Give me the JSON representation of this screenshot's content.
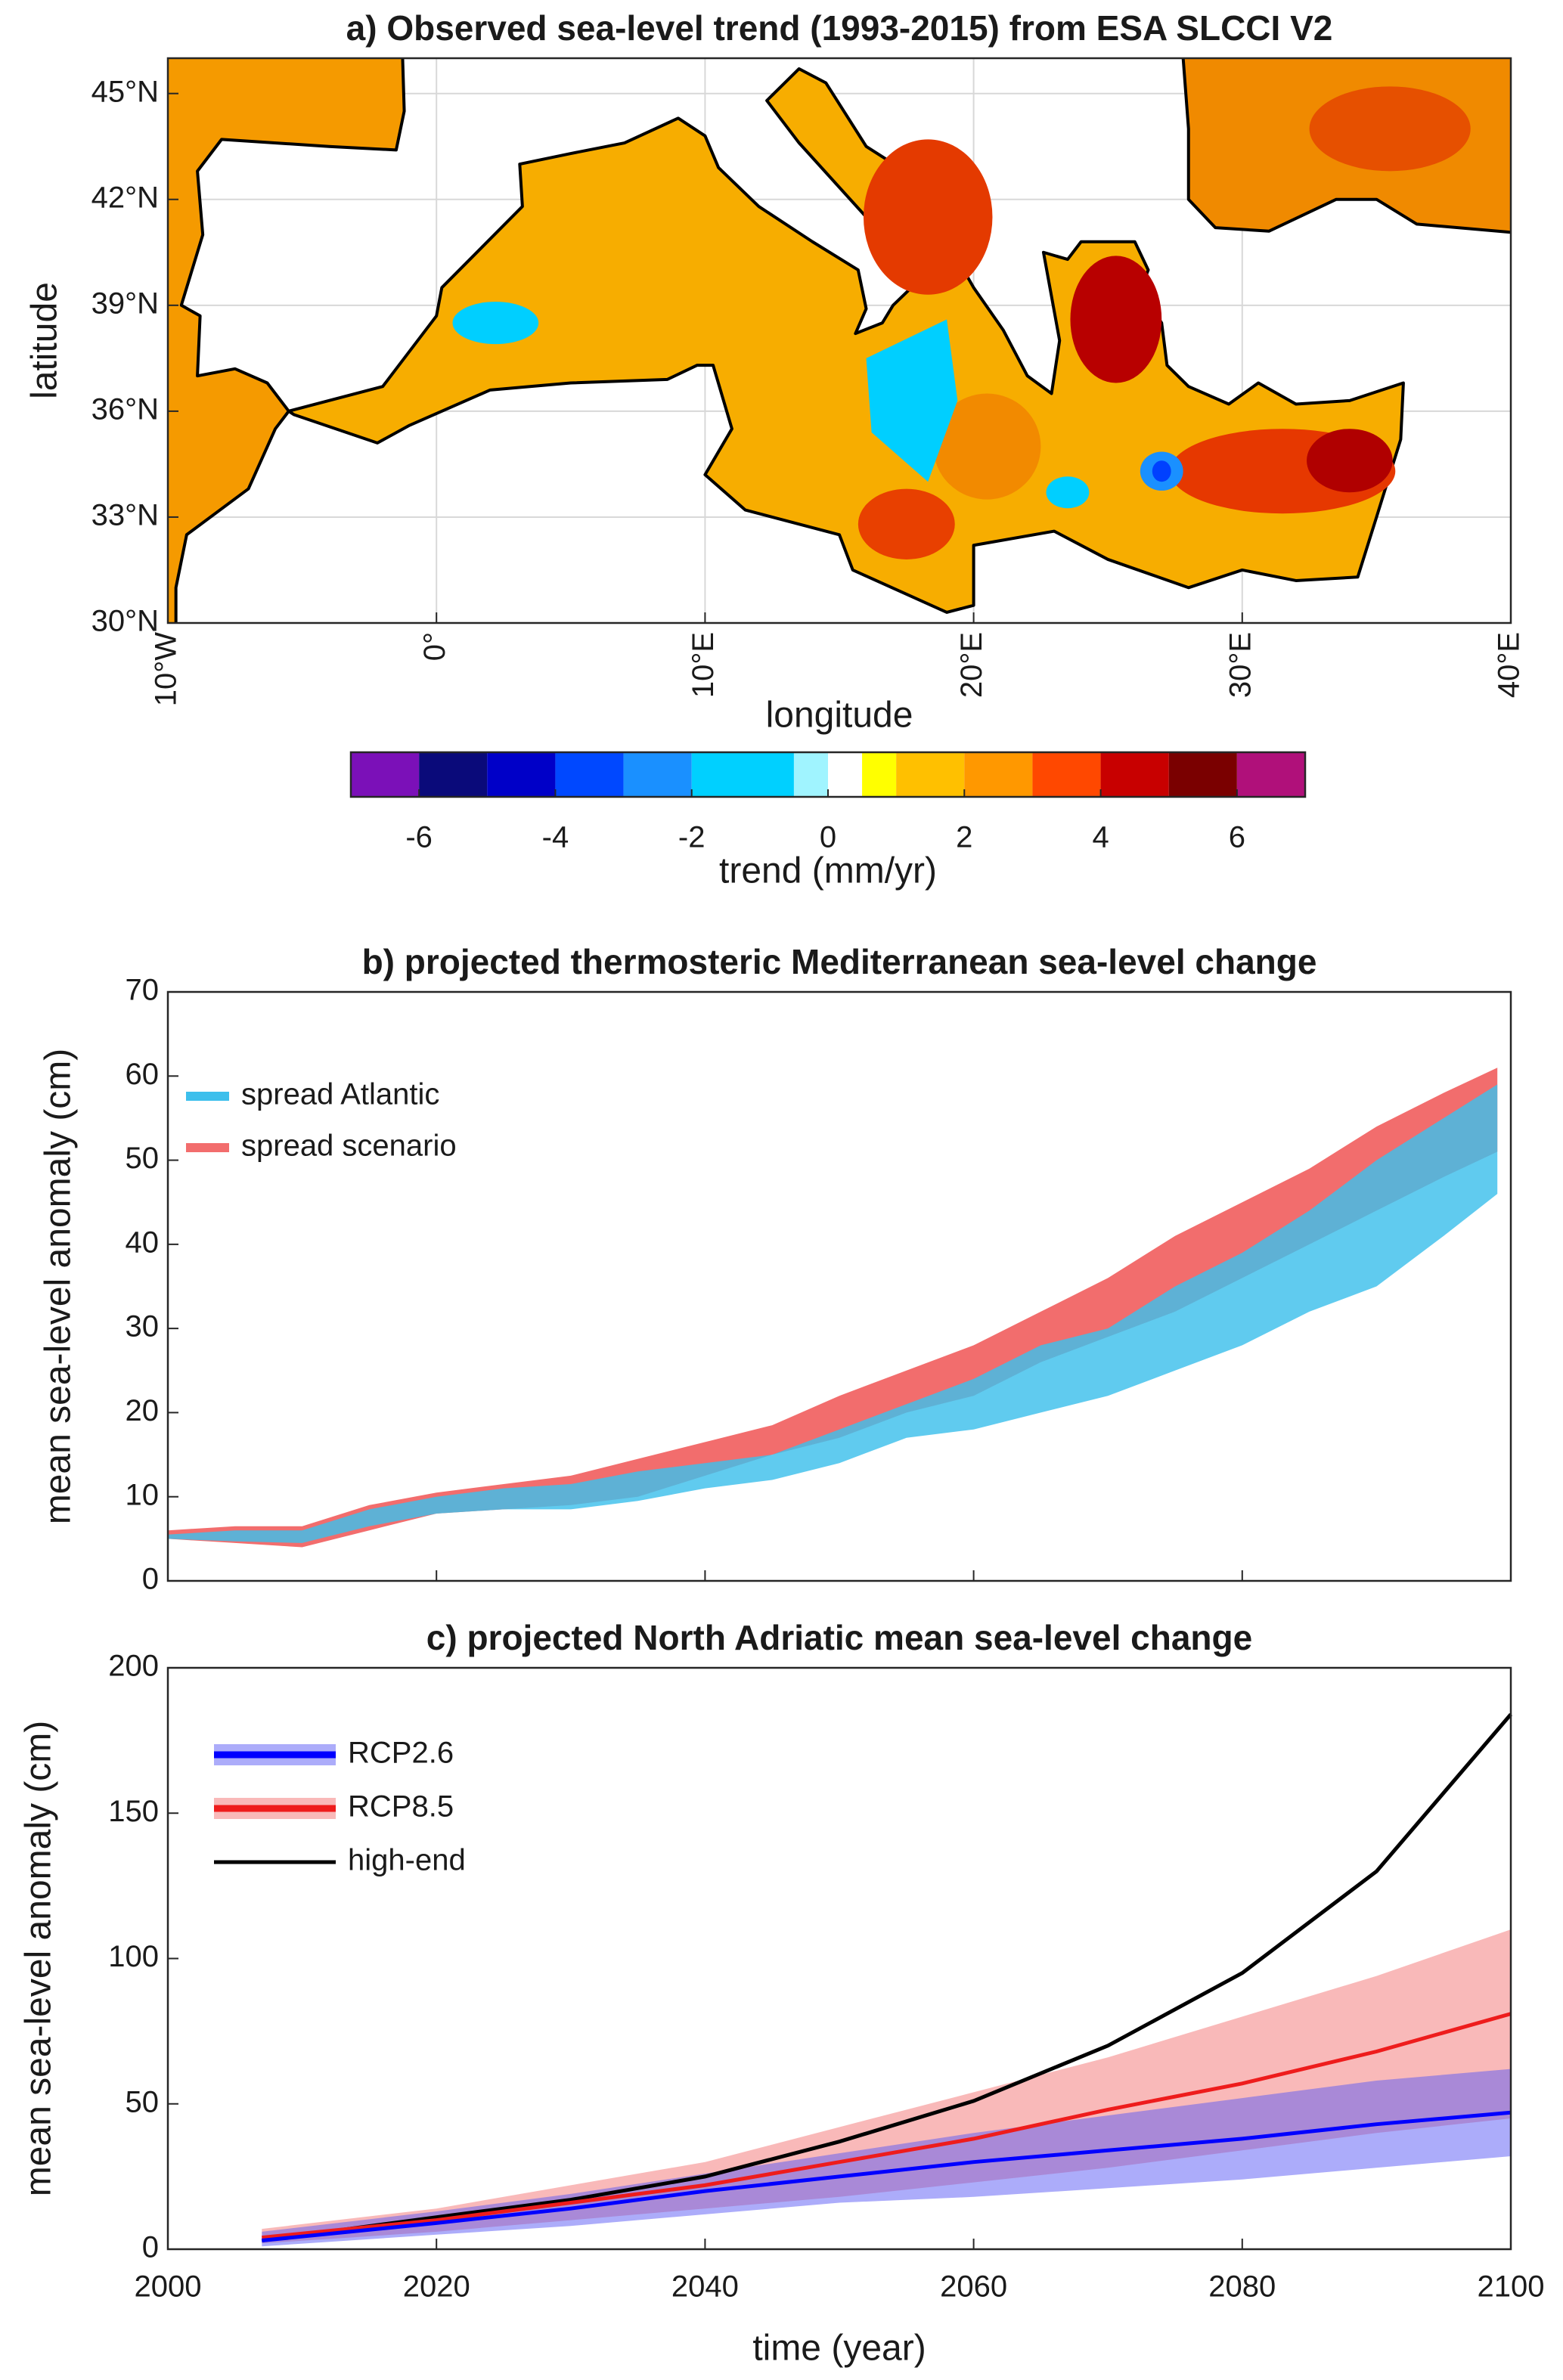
{
  "chart_data": [
    {
      "type": "map",
      "title": "a) Observed sea-level trend (1993-2015) from ESA SLCCI V2",
      "xlabel": "longitude",
      "ylabel": "latitude",
      "xlim": [
        -10,
        40
      ],
      "ylim": [
        30,
        46
      ],
      "grid": true,
      "xticks": [
        {
          "value": -10,
          "label": "10°W"
        },
        {
          "value": 0,
          "label": "0°"
        },
        {
          "value": 10,
          "label": "10°E"
        },
        {
          "value": 20,
          "label": "20°E"
        },
        {
          "value": 30,
          "label": "30°E"
        },
        {
          "value": 40,
          "label": "40°E"
        }
      ],
      "yticks": [
        {
          "value": 30,
          "label": "30°N"
        },
        {
          "value": 33,
          "label": "33°N"
        },
        {
          "value": 36,
          "label": "36°N"
        },
        {
          "value": 39,
          "label": "39°N"
        },
        {
          "value": 42,
          "label": "42°N"
        },
        {
          "value": 45,
          "label": "45°N"
        }
      ],
      "colorbar": {
        "label": "trend (mm/yr)",
        "lim": [
          -7,
          7
        ],
        "ticks": [
          -6,
          -4,
          -2,
          0,
          2,
          4,
          6
        ],
        "bounds": [
          -7,
          -6,
          -5,
          -4,
          -3,
          -2,
          -0.5,
          0,
          0.5,
          1,
          2,
          3,
          4,
          5,
          6,
          7
        ],
        "colors": [
          "#7b10b8",
          "#0a0a7a",
          "#0000c8",
          "#0048ff",
          "#1a90ff",
          "#00d0ff",
          "#a0f4ff",
          "#ffffff",
          "#ffff00",
          "#ffc000",
          "#ff9800",
          "#ff4800",
          "#c80000",
          "#7a0000",
          "#b0107a"
        ]
      }
    },
    {
      "type": "band",
      "title": "b) projected thermosteric Mediterranean sea-level change",
      "ylabel": "mean sea-level anomaly (cm)",
      "x": [
        2000,
        2005,
        2010,
        2015,
        2020,
        2025,
        2030,
        2035,
        2040,
        2045,
        2050,
        2055,
        2060,
        2065,
        2070,
        2075,
        2080,
        2085,
        2090,
        2095,
        2099
      ],
      "xlim": [
        2000,
        2100
      ],
      "xticks": [
        2000,
        2020,
        2040,
        2060,
        2080,
        2100
      ],
      "ylim": [
        0,
        70
      ],
      "yticks": [
        0,
        10,
        20,
        30,
        40,
        50,
        60,
        70
      ],
      "series": [
        {
          "name": "spread Atlantic",
          "color": "#3dbfec",
          "lower": [
            5,
            4.7,
            4.5,
            6.5,
            8,
            8.5,
            8.5,
            9.5,
            11,
            12,
            14,
            17,
            18,
            20,
            22,
            25,
            28,
            32,
            35,
            41,
            46
          ],
          "upper": [
            5.5,
            6,
            6,
            8.5,
            10,
            11,
            11.5,
            13,
            14,
            15,
            18,
            21,
            24,
            28,
            30,
            35,
            39,
            44,
            50,
            55,
            59
          ]
        },
        {
          "name": "spread scenario",
          "color": "#f26d6d",
          "lower": [
            5,
            4.5,
            4,
            6,
            8,
            8.5,
            9,
            10,
            12.5,
            15,
            17,
            20,
            22,
            26,
            29,
            32,
            36,
            40,
            44,
            48,
            51
          ],
          "upper": [
            6,
            6.5,
            6.5,
            9,
            10.5,
            11.5,
            12.5,
            14.5,
            16.5,
            18.5,
            22,
            25,
            28,
            32,
            36,
            41,
            45,
            49,
            54,
            58,
            61
          ]
        }
      ]
    },
    {
      "type": "line",
      "title": "c) projected North Adriatic mean sea-level change",
      "xlabel": "time (year)",
      "ylabel": "mean sea-level anomaly (cm)",
      "x": [
        2007,
        2020,
        2030,
        2040,
        2050,
        2060,
        2070,
        2080,
        2090,
        2100
      ],
      "xlim": [
        2000,
        2100
      ],
      "xticks": [
        2000,
        2020,
        2040,
        2060,
        2080,
        2100
      ],
      "ylim": [
        0,
        200
      ],
      "yticks": [
        0,
        50,
        100,
        150,
        200
      ],
      "series": [
        {
          "name": "RCP2.6",
          "color": "#0000ff",
          "band_color": "#5a5af5",
          "values": [
            3,
            9,
            14,
            20,
            25,
            30,
            34,
            38,
            43,
            47
          ],
          "lower": [
            1,
            5,
            8,
            12,
            16,
            18,
            21,
            24,
            28,
            32
          ],
          "upper": [
            6,
            13,
            19,
            26,
            33,
            40,
            46,
            52,
            58,
            62
          ]
        },
        {
          "name": "RCP8.5",
          "color": "#ee1c1c",
          "band_color": "#f47474",
          "values": [
            4,
            10,
            16,
            22,
            30,
            38,
            48,
            57,
            68,
            81
          ],
          "lower": [
            2,
            6,
            10,
            14,
            18,
            23,
            28,
            34,
            40,
            45
          ],
          "upper": [
            7,
            14,
            22,
            30,
            42,
            54,
            66,
            80,
            94,
            110
          ]
        },
        {
          "name": "high-end",
          "color": "#000000",
          "values": [
            3,
            11,
            17,
            25,
            37,
            51,
            70,
            95,
            130,
            184
          ]
        }
      ]
    }
  ]
}
